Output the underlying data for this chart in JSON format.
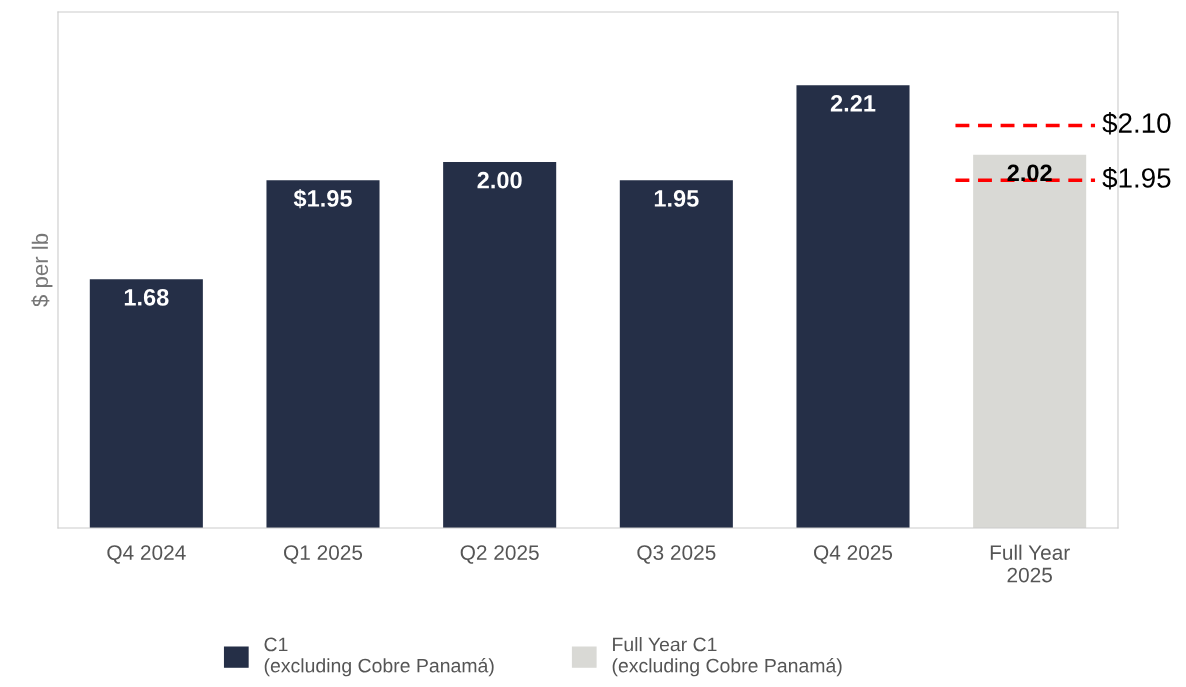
{
  "chart_data": {
    "type": "bar",
    "ylabel": "$ per lb",
    "categories": [
      "Q4 2024",
      "Q1 2025",
      "Q2 2025",
      "Q3 2025",
      "Q4 2025",
      "Full Year\n2025"
    ],
    "series": [
      {
        "name": "C1\n(excluding Cobre Panamá)",
        "color": "#252f47",
        "values": [
          1.68,
          1.95,
          2.0,
          1.95,
          2.21,
          null
        ],
        "value_labels": [
          "1.68",
          "$1.95",
          "2.00",
          "1.95",
          "2.21",
          null
        ]
      },
      {
        "name": "Full Year C1\n(excluding Cobre Panamá)",
        "color": "#d9d9d5",
        "values": [
          null,
          null,
          null,
          null,
          null,
          2.02
        ],
        "value_labels": [
          null,
          null,
          null,
          null,
          null,
          "2.02"
        ]
      }
    ],
    "ylim": [
      1.0,
      2.41
    ],
    "tick_labels": "x",
    "grid": false,
    "legend": "bottom",
    "ref_lines": [
      {
        "axis": "y",
        "value": 2.1,
        "label": "$2.10",
        "color": "#ff0000",
        "line_style": "dashed"
      },
      {
        "axis": "y",
        "value": 1.95,
        "label": "$1.95",
        "color": "#ff0000",
        "line_style": "dashed"
      }
    ]
  }
}
